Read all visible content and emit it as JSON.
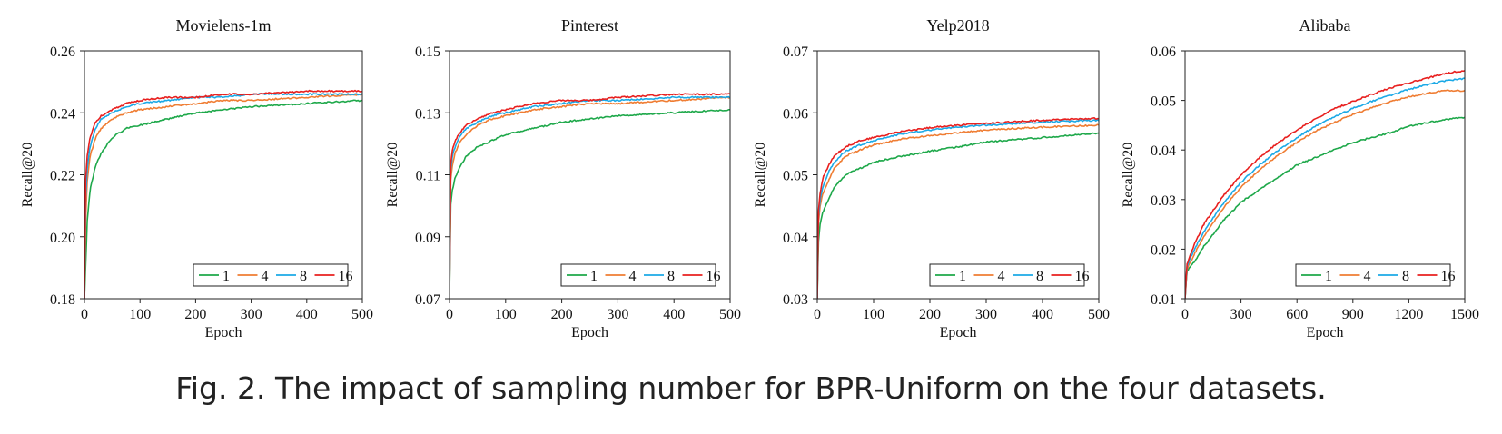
{
  "caption": "Fig. 2.  The impact of sampling number for BPR-Uniform on the four datasets.",
  "colors": {
    "1": "#1ea84a",
    "4": "#ef7d33",
    "8": "#1ba9e6",
    "16": "#e8201f"
  },
  "chart_data": [
    {
      "type": "line",
      "title": "Movielens-1m",
      "xlabel": "Epoch",
      "ylabel": "Recall@20",
      "xlim": [
        0,
        500
      ],
      "ylim": [
        0.18,
        0.26
      ],
      "xticks": [
        "0",
        "100",
        "200",
        "300",
        "400",
        "500"
      ],
      "yticks": [
        "0.18",
        "0.20",
        "0.22",
        "0.24",
        "0.26"
      ],
      "legend_position": "bottom-right",
      "series": [
        {
          "name": "1",
          "color": "#1ea84a",
          "x": [
            0,
            2,
            5,
            10,
            20,
            30,
            50,
            75,
            100,
            150,
            200,
            250,
            300,
            400,
            500
          ],
          "y": [
            0.18,
            0.19,
            0.205,
            0.215,
            0.223,
            0.227,
            0.232,
            0.235,
            0.236,
            0.238,
            0.24,
            0.241,
            0.242,
            0.243,
            0.244
          ]
        },
        {
          "name": "4",
          "color": "#ef7d33",
          "x": [
            0,
            2,
            5,
            10,
            20,
            30,
            50,
            75,
            100,
            150,
            200,
            250,
            300,
            400,
            500
          ],
          "y": [
            0.18,
            0.205,
            0.218,
            0.226,
            0.232,
            0.235,
            0.238,
            0.24,
            0.241,
            0.242,
            0.243,
            0.244,
            0.244,
            0.245,
            0.246
          ]
        },
        {
          "name": "8",
          "color": "#1ba9e6",
          "x": [
            0,
            2,
            5,
            10,
            20,
            30,
            50,
            75,
            100,
            150,
            200,
            250,
            300,
            400,
            500
          ],
          "y": [
            0.18,
            0.212,
            0.222,
            0.229,
            0.235,
            0.238,
            0.24,
            0.242,
            0.243,
            0.244,
            0.245,
            0.245,
            0.246,
            0.246,
            0.246
          ]
        },
        {
          "name": "16",
          "color": "#e8201f",
          "x": [
            0,
            2,
            5,
            10,
            20,
            30,
            50,
            75,
            100,
            150,
            200,
            250,
            300,
            400,
            500
          ],
          "y": [
            0.18,
            0.218,
            0.226,
            0.232,
            0.237,
            0.239,
            0.241,
            0.243,
            0.244,
            0.245,
            0.245,
            0.246,
            0.246,
            0.247,
            0.247
          ]
        }
      ]
    },
    {
      "type": "line",
      "title": "Pinterest",
      "xlabel": "Epoch",
      "ylabel": "Recall@20",
      "xlim": [
        0,
        500
      ],
      "ylim": [
        0.07,
        0.15
      ],
      "xticks": [
        "0",
        "100",
        "200",
        "300",
        "400",
        "500"
      ],
      "yticks": [
        "0.07",
        "0.09",
        "0.11",
        "0.13",
        "0.15"
      ],
      "legend_position": "bottom-right",
      "series": [
        {
          "name": "1",
          "color": "#1ea84a",
          "x": [
            0,
            2,
            5,
            10,
            20,
            30,
            50,
            75,
            100,
            150,
            200,
            250,
            300,
            400,
            500
          ],
          "y": [
            0.07,
            0.1,
            0.105,
            0.109,
            0.113,
            0.116,
            0.119,
            0.121,
            0.123,
            0.125,
            0.127,
            0.128,
            0.129,
            0.13,
            0.131
          ]
        },
        {
          "name": "4",
          "color": "#ef7d33",
          "x": [
            0,
            2,
            5,
            10,
            20,
            30,
            50,
            75,
            100,
            150,
            200,
            250,
            300,
            400,
            500
          ],
          "y": [
            0.07,
            0.108,
            0.113,
            0.117,
            0.121,
            0.123,
            0.126,
            0.128,
            0.129,
            0.131,
            0.132,
            0.133,
            0.133,
            0.134,
            0.135
          ]
        },
        {
          "name": "8",
          "color": "#1ba9e6",
          "x": [
            0,
            2,
            5,
            10,
            20,
            30,
            50,
            75,
            100,
            150,
            200,
            250,
            300,
            400,
            500
          ],
          "y": [
            0.07,
            0.111,
            0.116,
            0.119,
            0.123,
            0.125,
            0.127,
            0.129,
            0.13,
            0.132,
            0.133,
            0.134,
            0.134,
            0.135,
            0.135
          ]
        },
        {
          "name": "16",
          "color": "#e8201f",
          "x": [
            0,
            2,
            5,
            10,
            20,
            30,
            50,
            75,
            100,
            150,
            200,
            250,
            300,
            400,
            500
          ],
          "y": [
            0.07,
            0.113,
            0.118,
            0.121,
            0.124,
            0.126,
            0.128,
            0.13,
            0.131,
            0.133,
            0.134,
            0.134,
            0.135,
            0.136,
            0.136
          ]
        }
      ]
    },
    {
      "type": "line",
      "title": "Yelp2018",
      "xlabel": "Epoch",
      "ylabel": "Recall@20",
      "xlim": [
        0,
        500
      ],
      "ylim": [
        0.03,
        0.07
      ],
      "xticks": [
        "0",
        "100",
        "200",
        "300",
        "400",
        "500"
      ],
      "yticks": [
        "0.03",
        "0.04",
        "0.05",
        "0.06",
        "0.07"
      ],
      "legend_position": "bottom-right",
      "series": [
        {
          "name": "1",
          "color": "#1ea84a",
          "x": [
            0,
            2,
            5,
            10,
            20,
            30,
            50,
            75,
            100,
            150,
            200,
            250,
            300,
            400,
            500
          ],
          "y": [
            0.03,
            0.039,
            0.042,
            0.044,
            0.046,
            0.048,
            0.05,
            0.051,
            0.052,
            0.053,
            0.0538,
            0.0545,
            0.0553,
            0.056,
            0.0567
          ]
        },
        {
          "name": "4",
          "color": "#ef7d33",
          "x": [
            0,
            2,
            5,
            10,
            20,
            30,
            50,
            75,
            100,
            150,
            200,
            250,
            300,
            400,
            500
          ],
          "y": [
            0.03,
            0.042,
            0.045,
            0.047,
            0.049,
            0.051,
            0.053,
            0.054,
            0.0548,
            0.0558,
            0.0563,
            0.0568,
            0.0572,
            0.0577,
            0.058
          ]
        },
        {
          "name": "8",
          "color": "#1ba9e6",
          "x": [
            0,
            2,
            5,
            10,
            20,
            30,
            50,
            75,
            100,
            150,
            200,
            250,
            300,
            400,
            500
          ],
          "y": [
            0.03,
            0.043,
            0.046,
            0.048,
            0.0505,
            0.052,
            0.0538,
            0.0548,
            0.0555,
            0.0566,
            0.0572,
            0.0577,
            0.058,
            0.0585,
            0.0588
          ]
        },
        {
          "name": "16",
          "color": "#e8201f",
          "x": [
            0,
            2,
            5,
            10,
            20,
            30,
            50,
            75,
            100,
            150,
            200,
            250,
            300,
            400,
            500
          ],
          "y": [
            0.03,
            0.044,
            0.047,
            0.0495,
            0.0515,
            0.053,
            0.0545,
            0.0555,
            0.056,
            0.057,
            0.0576,
            0.058,
            0.0583,
            0.0588,
            0.0591
          ]
        }
      ]
    },
    {
      "type": "line",
      "title": "Alibaba",
      "xlabel": "Epoch",
      "ylabel": "Recall@20",
      "xlim": [
        0,
        1500
      ],
      "ylim": [
        0.01,
        0.06
      ],
      "xticks": [
        "0",
        "300",
        "600",
        "900",
        "1200",
        "1500"
      ],
      "yticks": [
        "0.01",
        "0.02",
        "0.03",
        "0.04",
        "0.05",
        "0.06"
      ],
      "legend_position": "bottom-right",
      "series": [
        {
          "name": "1",
          "color": "#1ea84a",
          "x": [
            0,
            10,
            50,
            100,
            200,
            300,
            400,
            500,
            600,
            700,
            800,
            900,
            1000,
            1100,
            1200,
            1300,
            1400,
            1500
          ],
          "y": [
            0.01,
            0.0155,
            0.0175,
            0.0205,
            0.0255,
            0.0295,
            0.032,
            0.0345,
            0.037,
            0.0385,
            0.04,
            0.0415,
            0.0425,
            0.0435,
            0.0448,
            0.0455,
            0.0462,
            0.0465
          ]
        },
        {
          "name": "4",
          "color": "#ef7d33",
          "x": [
            0,
            10,
            50,
            100,
            200,
            300,
            400,
            500,
            600,
            700,
            800,
            900,
            1000,
            1100,
            1200,
            1300,
            1400,
            1500
          ],
          "y": [
            0.01,
            0.016,
            0.019,
            0.0225,
            0.028,
            0.0325,
            0.036,
            0.039,
            0.0415,
            0.0438,
            0.0455,
            0.0472,
            0.0485,
            0.0497,
            0.0507,
            0.0515,
            0.052,
            0.0519
          ]
        },
        {
          "name": "8",
          "color": "#1ba9e6",
          "x": [
            0,
            10,
            50,
            100,
            200,
            300,
            400,
            500,
            600,
            700,
            800,
            900,
            1000,
            1100,
            1200,
            1300,
            1400,
            1500
          ],
          "y": [
            0.01,
            0.0165,
            0.02,
            0.0235,
            0.029,
            0.0335,
            0.037,
            0.04,
            0.0425,
            0.0448,
            0.0467,
            0.0484,
            0.0498,
            0.051,
            0.0522,
            0.0532,
            0.054,
            0.0544
          ]
        },
        {
          "name": "16",
          "color": "#e8201f",
          "x": [
            0,
            10,
            50,
            100,
            200,
            300,
            400,
            500,
            600,
            700,
            800,
            900,
            1000,
            1100,
            1200,
            1300,
            1400,
            1500
          ],
          "y": [
            0.01,
            0.017,
            0.021,
            0.025,
            0.0305,
            0.035,
            0.0385,
            0.0415,
            0.044,
            0.0463,
            0.0483,
            0.0498,
            0.0512,
            0.0525,
            0.0535,
            0.0545,
            0.0555,
            0.056
          ]
        }
      ]
    }
  ]
}
